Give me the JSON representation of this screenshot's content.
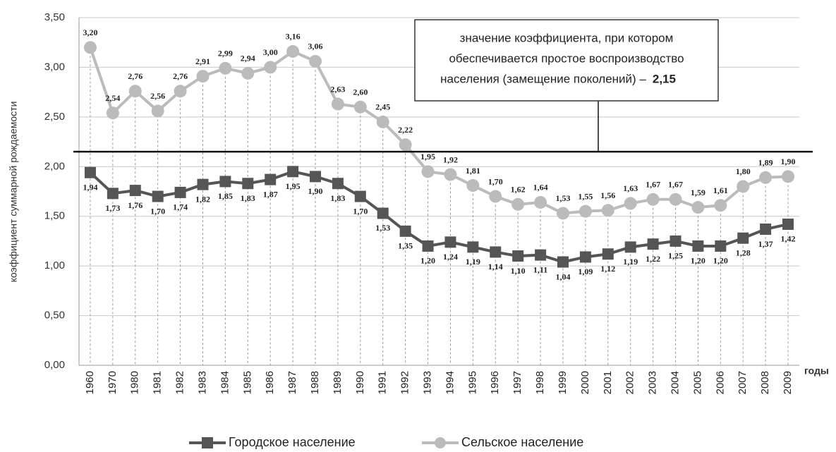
{
  "chart_data": {
    "type": "line",
    "y_axis_label": "коэффициент суммарной рождаемости",
    "x_axis_label": "годы",
    "categories": [
      "1960",
      "1970",
      "1980",
      "1981",
      "1982",
      "1983",
      "1984",
      "1985",
      "1986",
      "1987",
      "1988",
      "1989",
      "1990",
      "1991",
      "1992",
      "1993",
      "1994",
      "1995",
      "1996",
      "1997",
      "1998",
      "1999",
      "2000",
      "2001",
      "2002",
      "2003",
      "2004",
      "2005",
      "2006",
      "2007",
      "2008",
      "2009"
    ],
    "series": [
      {
        "name": "Городское население",
        "color": "#555555",
        "marker": "square",
        "values": [
          1.94,
          1.73,
          1.76,
          1.7,
          1.74,
          1.82,
          1.85,
          1.83,
          1.87,
          1.95,
          1.9,
          1.83,
          1.7,
          1.53,
          1.35,
          1.2,
          1.24,
          1.19,
          1.14,
          1.1,
          1.11,
          1.04,
          1.09,
          1.12,
          1.19,
          1.22,
          1.25,
          1.2,
          1.2,
          1.28,
          1.37,
          1.42
        ],
        "value_labels": [
          "1,94",
          "1,73",
          "1,76",
          "1,70",
          "1,74",
          "1,82",
          "1,85",
          "1,83",
          "1,87",
          "1,95",
          "1,90",
          "1,83",
          "1,70",
          "1,53",
          "1,35",
          "1,20",
          "1,24",
          "1,19",
          "1,14",
          "1,10",
          "1,11",
          "1,04",
          "1,09",
          "1,12",
          "1,19",
          "1,22",
          "1,25",
          "1,20",
          "1,20",
          "1,28",
          "1,37",
          "1,42"
        ]
      },
      {
        "name": "Сельское население",
        "color": "#bbbbbb",
        "marker": "circle",
        "values": [
          3.2,
          2.54,
          2.76,
          2.56,
          2.76,
          2.91,
          2.99,
          2.94,
          3.0,
          3.16,
          3.06,
          2.63,
          2.6,
          2.45,
          2.22,
          1.95,
          1.92,
          1.81,
          1.7,
          1.62,
          1.64,
          1.53,
          1.55,
          1.56,
          1.63,
          1.67,
          1.67,
          1.59,
          1.61,
          1.8,
          1.89,
          1.9
        ],
        "value_labels": [
          "3,20",
          "2,54",
          "2,76",
          "2,56",
          "2,76",
          "2,91",
          "2,99",
          "2,94",
          "3,00",
          "3,16",
          "3,06",
          "2,63",
          "2,60",
          "2,45",
          "2,22",
          "1,95",
          "1,92",
          "1,81",
          "1,70",
          "1,62",
          "1,64",
          "1,53",
          "1,55",
          "1,56",
          "1,63",
          "1,67",
          "1,67",
          "1,59",
          "1,61",
          "1,80",
          "1,89",
          "1,90"
        ]
      }
    ],
    "ylim": [
      0,
      3.5
    ],
    "yticks": [
      {
        "value": 0,
        "label": "0,00"
      },
      {
        "value": 0.5,
        "label": "0,50"
      },
      {
        "value": 1,
        "label": "1,00"
      },
      {
        "value": 1.5,
        "label": "1,50"
      },
      {
        "value": 2,
        "label": "2,00"
      },
      {
        "value": 2.5,
        "label": "2,50"
      },
      {
        "value": 3,
        "label": "3,00"
      },
      {
        "value": 3.5,
        "label": "3,50"
      }
    ],
    "grid": true,
    "annotation": [
      "значение коэффициента, при котором",
      "обеспечивается простое воспроизводство",
      "населения (замещение поколений) –"
    ],
    "reference_line": {
      "value": 2.15,
      "label": "2,15"
    }
  }
}
